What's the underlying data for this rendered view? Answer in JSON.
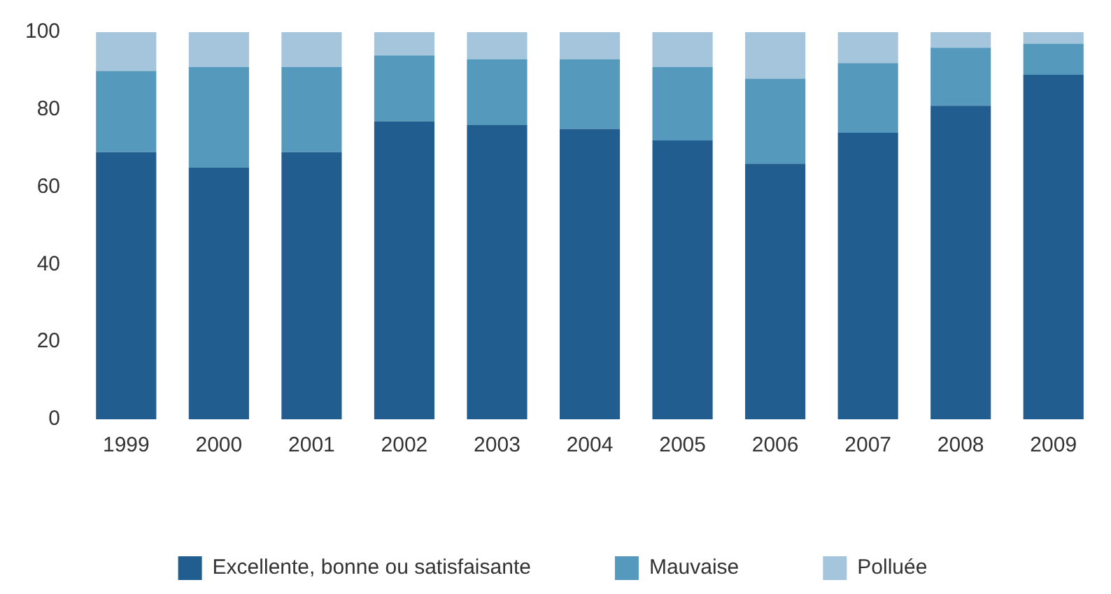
{
  "chart_data": {
    "type": "bar",
    "stacked": true,
    "categories": [
      "1999",
      "2000",
      "2001",
      "2002",
      "2003",
      "2004",
      "2005",
      "2006",
      "2007",
      "2008",
      "2009"
    ],
    "series": [
      {
        "name": "Excellente, bonne ou satisfaisante",
        "color": "#215d8f",
        "values": [
          69,
          65,
          69,
          77,
          76,
          75,
          72,
          66,
          74,
          81,
          89
        ]
      },
      {
        "name": "Mauvaise",
        "color": "#559abd",
        "values": [
          21,
          26,
          22,
          17,
          17,
          18,
          19,
          22,
          18,
          15,
          8
        ]
      },
      {
        "name": "Polluée",
        "color": "#a4c5dc",
        "values": [
          10,
          9,
          9,
          6,
          7,
          7,
          9,
          12,
          8,
          4,
          3
        ]
      }
    ],
    "ylim": [
      0,
      100
    ],
    "yticks": [
      0,
      20,
      40,
      60,
      80,
      100
    ],
    "grid": false,
    "legend": "bottom"
  }
}
